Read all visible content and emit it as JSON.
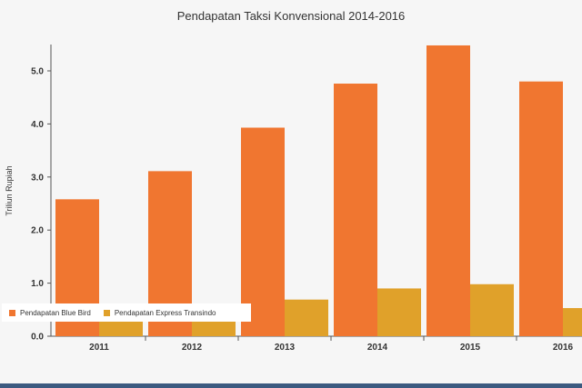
{
  "chart_data": {
    "type": "bar",
    "title": "Pendapatan Taksi Konvensional 2014-2016",
    "xlabel": "",
    "ylabel": "Triliun Rupiah",
    "categories": [
      "2011",
      "2012",
      "2013",
      "2014",
      "2015",
      "2016"
    ],
    "series": [
      {
        "name": "Pendapatan Blue Bird",
        "color": "#f07630",
        "values": [
          2.58,
          3.11,
          3.93,
          4.76,
          5.48,
          4.8
        ]
      },
      {
        "name": "Pendapatan Express Transindo",
        "color": "#e0a12a",
        "values": [
          0.38,
          0.41,
          0.69,
          0.9,
          0.98,
          0.53
        ]
      }
    ],
    "ylim": [
      0,
      5.5
    ],
    "yticks": [
      "0.0",
      "1.0",
      "2.0",
      "3.0",
      "4.0",
      "5.0"
    ],
    "grid": false,
    "legend_position": "bottom-left"
  }
}
